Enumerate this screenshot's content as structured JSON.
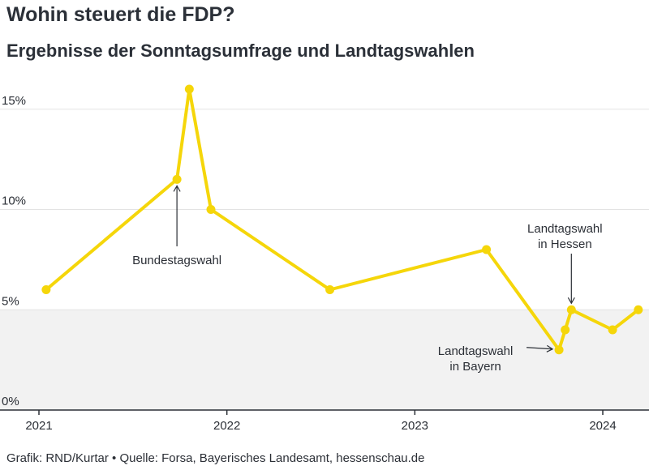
{
  "title": "Wohin steuert die FDP?",
  "subtitle": "Ergebnisse der Sonntagsumfrage und Landtagswahlen",
  "source": "Grafik: RND/Kurtar • Quelle: Forsa, Bayerisches Landesamt, hessenschau.de",
  "colors": {
    "line": "#f5d60a",
    "shade": "#f2f2f2",
    "grid": "#e3e3e3",
    "axis": "#2b2f36"
  },
  "chart_data": {
    "type": "line",
    "x_type": "date",
    "xlim": [
      "2021-01-01",
      "2024-03-15"
    ],
    "ylim": [
      0,
      16
    ],
    "yticks": [
      0,
      5,
      10,
      15
    ],
    "ytick_labels": [
      "0%",
      "5%",
      "10%",
      "15%"
    ],
    "xticks": [
      "2021-01-01",
      "2022-01-01",
      "2023-01-01",
      "2024-01-01"
    ],
    "xtick_labels": [
      "2021",
      "2022",
      "2023",
      "2024"
    ],
    "shaded_below": 5,
    "series": [
      {
        "points": [
          [
            "2021-01-15",
            6
          ],
          [
            "2021-09-26",
            11.5
          ],
          [
            "2021-10-20",
            16
          ],
          [
            "2021-12-01",
            10
          ],
          [
            "2022-07-20",
            6
          ],
          [
            "2023-05-20",
            8
          ],
          [
            "2023-10-08",
            3
          ],
          [
            "2023-10-20",
            4
          ],
          [
            "2023-11-01",
            5
          ],
          [
            "2024-01-20",
            4
          ],
          [
            "2024-03-10",
            5
          ]
        ]
      }
    ],
    "annotations": [
      {
        "lines": [
          "Bundestagswahl"
        ],
        "point_index": 1
      },
      {
        "lines": [
          "Landtagswahl",
          "in Hessen"
        ],
        "point_index": 8
      },
      {
        "lines": [
          "Landtagswahl",
          "in Bayern"
        ],
        "point_index": 6
      }
    ]
  }
}
